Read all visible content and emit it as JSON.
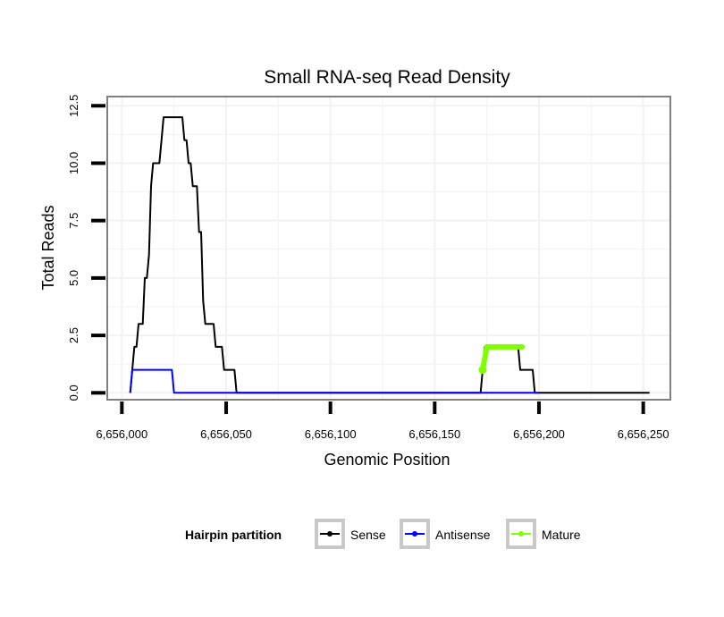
{
  "chart_data": {
    "type": "line",
    "title": "Small RNA-seq Read Density",
    "xlabel": "Genomic Position",
    "ylabel": "Total Reads",
    "xlim": [
      6655993,
      6656263
    ],
    "ylim": [
      -0.3,
      12.9
    ],
    "x_ticks": [
      6656000,
      6656050,
      6656100,
      6656150,
      6656200,
      6656250
    ],
    "x_tick_labels": [
      "6,656,000",
      "6,656,050",
      "6,656,100",
      "6,656,150",
      "6,656,200",
      "6,656,250"
    ],
    "y_ticks": [
      0,
      2.5,
      5,
      7.5,
      10,
      12.5
    ],
    "y_tick_labels": [
      "0.0",
      "2.5",
      "5.0",
      "7.5",
      "10.0",
      "12.5"
    ],
    "grid": true,
    "legend": {
      "title": "Hairpin partition",
      "position": "bottom",
      "entries": [
        "Sense",
        "Antisense",
        "Mature"
      ]
    },
    "series": [
      {
        "name": "Sense",
        "color": "#000000",
        "x": [
          6656004,
          6656005,
          6656006,
          6656007,
          6656008,
          6656009,
          6656010,
          6656011,
          6656012,
          6656013,
          6656014,
          6656015,
          6656016,
          6656017,
          6656018,
          6656019,
          6656020,
          6656021,
          6656022,
          6656023,
          6656024,
          6656025,
          6656026,
          6656027,
          6656028,
          6656029,
          6656030,
          6656031,
          6656032,
          6656033,
          6656034,
          6656035,
          6656036,
          6656037,
          6656038,
          6656039,
          6656040,
          6656041,
          6656042,
          6656043,
          6656044,
          6656045,
          6656046,
          6656047,
          6656048,
          6656049,
          6656050,
          6656051,
          6656052,
          6656053,
          6656054,
          6656055,
          6656100,
          6656150,
          6656172,
          6656173,
          6656174,
          6656175,
          6656176,
          6656177,
          6656185,
          6656190,
          6656191,
          6656192,
          6656193,
          6656194,
          6656195,
          6656196,
          6656197,
          6656198,
          6656199,
          6656253
        ],
        "y": [
          0,
          1,
          2,
          2,
          3,
          3,
          3,
          5,
          5,
          6,
          9,
          10,
          10,
          10,
          10,
          11,
          12,
          12,
          12,
          12,
          12,
          12,
          12,
          12,
          12,
          12,
          11,
          11,
          10,
          10,
          9,
          9,
          9,
          7,
          7,
          4,
          3,
          3,
          3,
          3,
          3,
          2,
          2,
          2,
          2,
          1,
          1,
          1,
          1,
          1,
          1,
          0,
          0,
          0,
          0,
          1,
          2,
          2,
          2,
          2,
          2,
          2,
          1,
          1,
          1,
          1,
          1,
          1,
          1,
          0,
          0,
          0
        ]
      },
      {
        "name": "Antisense",
        "color": "#0000ff",
        "x": [
          6656004,
          6656005,
          6656024,
          6656025,
          6656050,
          6656100,
          6656150,
          6656200
        ],
        "y": [
          0,
          1,
          1,
          0,
          0,
          0,
          0,
          0
        ]
      },
      {
        "name": "Mature",
        "color": "#7fff00",
        "x": [
          6656173,
          6656175,
          6656176,
          6656192
        ],
        "y": [
          1,
          2,
          2,
          2
        ]
      }
    ]
  }
}
